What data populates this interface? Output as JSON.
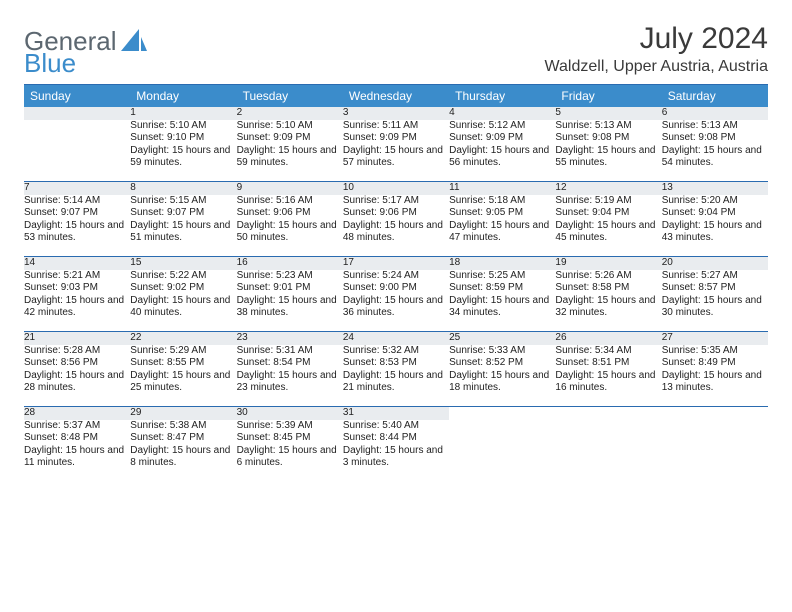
{
  "brand": {
    "part1": "General",
    "part2": "Blue"
  },
  "title": {
    "month": "July 2024",
    "location": "Waldzell, Upper Austria, Austria"
  },
  "colors": {
    "header_bg": "#3b8ccb",
    "rule": "#2a6bb0",
    "daynum_bg": "#e9ecef",
    "text": "#222222",
    "brand_gray": "#5c6770",
    "brand_blue": "#3b8ccb"
  },
  "days_of_week": [
    "Sunday",
    "Monday",
    "Tuesday",
    "Wednesday",
    "Thursday",
    "Friday",
    "Saturday"
  ],
  "weeks": [
    [
      null,
      {
        "n": "1",
        "sunrise": "5:10 AM",
        "sunset": "9:10 PM",
        "daylight": "15 hours and 59 minutes."
      },
      {
        "n": "2",
        "sunrise": "5:10 AM",
        "sunset": "9:09 PM",
        "daylight": "15 hours and 59 minutes."
      },
      {
        "n": "3",
        "sunrise": "5:11 AM",
        "sunset": "9:09 PM",
        "daylight": "15 hours and 57 minutes."
      },
      {
        "n": "4",
        "sunrise": "5:12 AM",
        "sunset": "9:09 PM",
        "daylight": "15 hours and 56 minutes."
      },
      {
        "n": "5",
        "sunrise": "5:13 AM",
        "sunset": "9:08 PM",
        "daylight": "15 hours and 55 minutes."
      },
      {
        "n": "6",
        "sunrise": "5:13 AM",
        "sunset": "9:08 PM",
        "daylight": "15 hours and 54 minutes."
      }
    ],
    [
      {
        "n": "7",
        "sunrise": "5:14 AM",
        "sunset": "9:07 PM",
        "daylight": "15 hours and 53 minutes."
      },
      {
        "n": "8",
        "sunrise": "5:15 AM",
        "sunset": "9:07 PM",
        "daylight": "15 hours and 51 minutes."
      },
      {
        "n": "9",
        "sunrise": "5:16 AM",
        "sunset": "9:06 PM",
        "daylight": "15 hours and 50 minutes."
      },
      {
        "n": "10",
        "sunrise": "5:17 AM",
        "sunset": "9:06 PM",
        "daylight": "15 hours and 48 minutes."
      },
      {
        "n": "11",
        "sunrise": "5:18 AM",
        "sunset": "9:05 PM",
        "daylight": "15 hours and 47 minutes."
      },
      {
        "n": "12",
        "sunrise": "5:19 AM",
        "sunset": "9:04 PM",
        "daylight": "15 hours and 45 minutes."
      },
      {
        "n": "13",
        "sunrise": "5:20 AM",
        "sunset": "9:04 PM",
        "daylight": "15 hours and 43 minutes."
      }
    ],
    [
      {
        "n": "14",
        "sunrise": "5:21 AM",
        "sunset": "9:03 PM",
        "daylight": "15 hours and 42 minutes."
      },
      {
        "n": "15",
        "sunrise": "5:22 AM",
        "sunset": "9:02 PM",
        "daylight": "15 hours and 40 minutes."
      },
      {
        "n": "16",
        "sunrise": "5:23 AM",
        "sunset": "9:01 PM",
        "daylight": "15 hours and 38 minutes."
      },
      {
        "n": "17",
        "sunrise": "5:24 AM",
        "sunset": "9:00 PM",
        "daylight": "15 hours and 36 minutes."
      },
      {
        "n": "18",
        "sunrise": "5:25 AM",
        "sunset": "8:59 PM",
        "daylight": "15 hours and 34 minutes."
      },
      {
        "n": "19",
        "sunrise": "5:26 AM",
        "sunset": "8:58 PM",
        "daylight": "15 hours and 32 minutes."
      },
      {
        "n": "20",
        "sunrise": "5:27 AM",
        "sunset": "8:57 PM",
        "daylight": "15 hours and 30 minutes."
      }
    ],
    [
      {
        "n": "21",
        "sunrise": "5:28 AM",
        "sunset": "8:56 PM",
        "daylight": "15 hours and 28 minutes."
      },
      {
        "n": "22",
        "sunrise": "5:29 AM",
        "sunset": "8:55 PM",
        "daylight": "15 hours and 25 minutes."
      },
      {
        "n": "23",
        "sunrise": "5:31 AM",
        "sunset": "8:54 PM",
        "daylight": "15 hours and 23 minutes."
      },
      {
        "n": "24",
        "sunrise": "5:32 AM",
        "sunset": "8:53 PM",
        "daylight": "15 hours and 21 minutes."
      },
      {
        "n": "25",
        "sunrise": "5:33 AM",
        "sunset": "8:52 PM",
        "daylight": "15 hours and 18 minutes."
      },
      {
        "n": "26",
        "sunrise": "5:34 AM",
        "sunset": "8:51 PM",
        "daylight": "15 hours and 16 minutes."
      },
      {
        "n": "27",
        "sunrise": "5:35 AM",
        "sunset": "8:49 PM",
        "daylight": "15 hours and 13 minutes."
      }
    ],
    [
      {
        "n": "28",
        "sunrise": "5:37 AM",
        "sunset": "8:48 PM",
        "daylight": "15 hours and 11 minutes."
      },
      {
        "n": "29",
        "sunrise": "5:38 AM",
        "sunset": "8:47 PM",
        "daylight": "15 hours and 8 minutes."
      },
      {
        "n": "30",
        "sunrise": "5:39 AM",
        "sunset": "8:45 PM",
        "daylight": "15 hours and 6 minutes."
      },
      {
        "n": "31",
        "sunrise": "5:40 AM",
        "sunset": "8:44 PM",
        "daylight": "15 hours and 3 minutes."
      },
      null,
      null,
      null
    ]
  ],
  "labels": {
    "sunrise": "Sunrise:",
    "sunset": "Sunset:",
    "daylight": "Daylight:"
  }
}
